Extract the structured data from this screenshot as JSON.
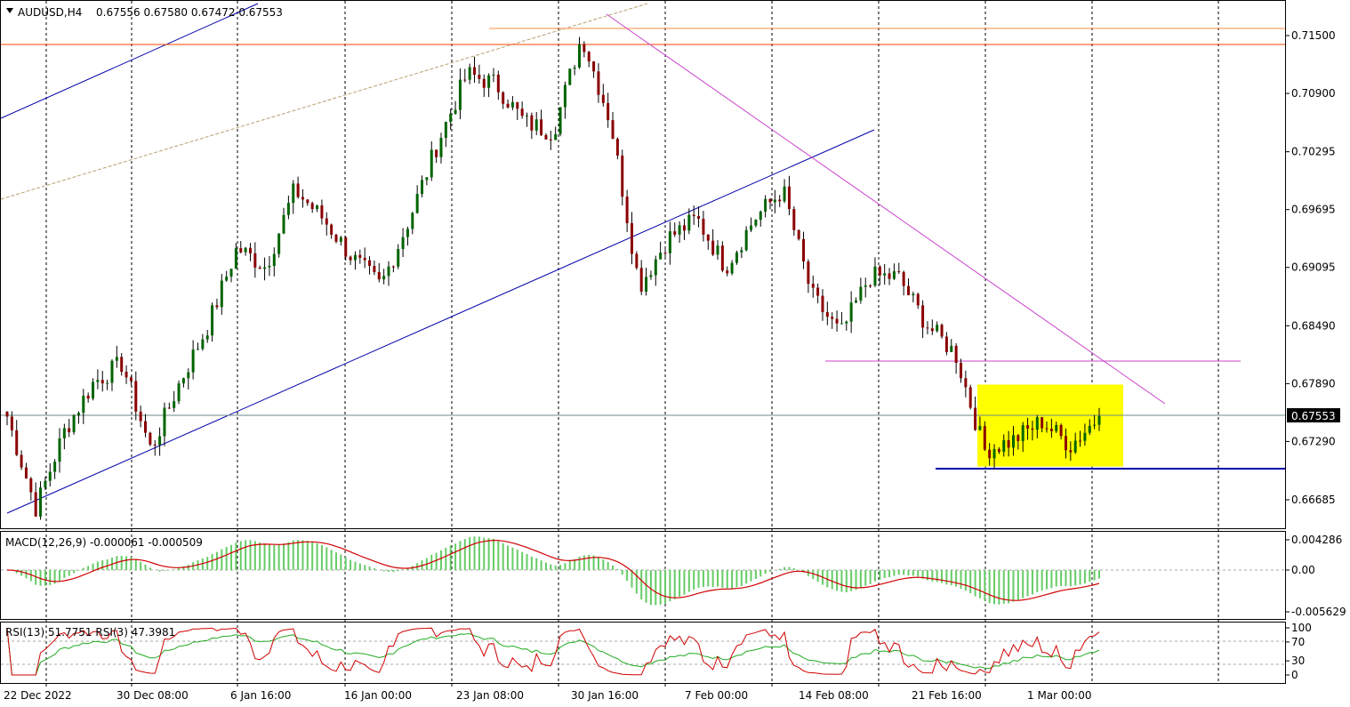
{
  "header": {
    "symbol": "AUDUSD,H4",
    "ohlc": "0.67556 0.67580 0.67472 0.67553"
  },
  "price_axis": {
    "ticks": [
      "0.71500",
      "0.70900",
      "0.70295",
      "0.69695",
      "0.69095",
      "0.68490",
      "0.67890",
      "0.67290",
      "0.66685"
    ],
    "current_price_label": "0.67553"
  },
  "macd": {
    "title": "MACD(12,26,9) -0.000061 -0.000509",
    "ticks": [
      "0.004286",
      "0.00",
      "-0.005629"
    ]
  },
  "rsi": {
    "title": "RSI(13) 51.7751  RSI(3) 47.3981",
    "ticks": [
      "100",
      "70",
      "30",
      "0"
    ]
  },
  "time_axis": {
    "labels": [
      "22 Dec 2022",
      "30 Dec 08:00",
      "6 Jan 16:00",
      "16 Jan 00:00",
      "23 Jan 08:00",
      "30 Jan 16:00",
      "7 Feb 00:00",
      "14 Feb 08:00",
      "21 Feb 16:00",
      "1 Mar 00:00"
    ]
  },
  "colors": {
    "bull": "#006400",
    "bear": "#8b0000",
    "channel": "#0000aa",
    "resistance": "#ff4500",
    "trendline": "#cc44cc",
    "box": "#ffff00",
    "macd_hist": "#66cc66",
    "macd_signal": "#d00000",
    "rsi13": "#22aa22",
    "rsi3": "#d00000"
  },
  "chart_data": {
    "type": "candlestick",
    "symbol": "AUDUSD",
    "timeframe": "H4",
    "ylim": [
      0.6645,
      0.72
    ],
    "close_path": [
      [
        "22 Dec 2022",
        0.6755
      ],
      [
        "24 Dec 2022",
        0.666
      ],
      [
        "28 Dec 2022",
        0.674
      ],
      [
        "30 Dec 2022",
        0.679
      ],
      [
        "2 Jan 2023",
        0.681
      ],
      [
        "4 Jan 2023",
        0.672
      ],
      [
        "5 Jan 2023",
        0.679
      ],
      [
        "6 Jan 2023",
        0.685
      ],
      [
        "9 Jan 2023",
        0.693
      ],
      [
        "11 Jan 2023",
        0.691
      ],
      [
        "13 Jan 2023",
        0.699
      ],
      [
        "16 Jan 2023",
        0.696
      ],
      [
        "18 Jan 2023",
        0.692
      ],
      [
        "19 Jan 2023",
        0.689
      ],
      [
        "20 Jan 2023",
        0.696
      ],
      [
        "23 Jan 2023",
        0.704
      ],
      [
        "25 Jan 2023",
        0.711
      ],
      [
        "27 Jan 2023",
        0.71
      ],
      [
        "30 Jan 2023",
        0.706
      ],
      [
        "31 Jan 2023",
        0.705
      ],
      [
        "2 Feb 2023",
        0.715
      ],
      [
        "3 Feb 2023",
        0.706
      ],
      [
        "6 Feb 2023",
        0.689
      ],
      [
        "7 Feb 2023",
        0.694
      ],
      [
        "8 Feb 2023",
        0.696
      ],
      [
        "10 Feb 2023",
        0.691
      ],
      [
        "13 Feb 2023",
        0.696
      ],
      [
        "14 Feb 2023",
        0.699
      ],
      [
        "15 Feb 2023",
        0.688
      ],
      [
        "16 Feb 2023",
        0.684
      ],
      [
        "17 Feb 2023",
        0.69
      ],
      [
        "20 Feb 2023",
        0.69
      ],
      [
        "21 Feb 2023",
        0.685
      ],
      [
        "22 Feb 2023",
        0.682
      ],
      [
        "24 Feb 2023",
        0.672
      ],
      [
        "27 Feb 2023",
        0.673
      ],
      [
        "28 Feb 2023",
        0.675
      ],
      [
        "1 Mar 2023",
        0.6725
      ],
      [
        "2 Mar 2023",
        0.6755
      ]
    ],
    "current_price": 0.67553,
    "horizontal_levels": [
      0.7156,
      0.7145,
      0.6818,
      0.6703
    ],
    "consolidation_box": {
      "top": 0.6788,
      "bottom": 0.6703
    },
    "macd": {
      "params": "12,26,9",
      "main": -6.1e-05,
      "signal": -0.000509,
      "ylim": [
        -0.005629,
        0.004286
      ]
    },
    "rsi": {
      "rsi13": 51.7751,
      "rsi3": 47.3981,
      "levels": [
        70,
        30
      ],
      "ylim": [
        0,
        100
      ]
    }
  }
}
